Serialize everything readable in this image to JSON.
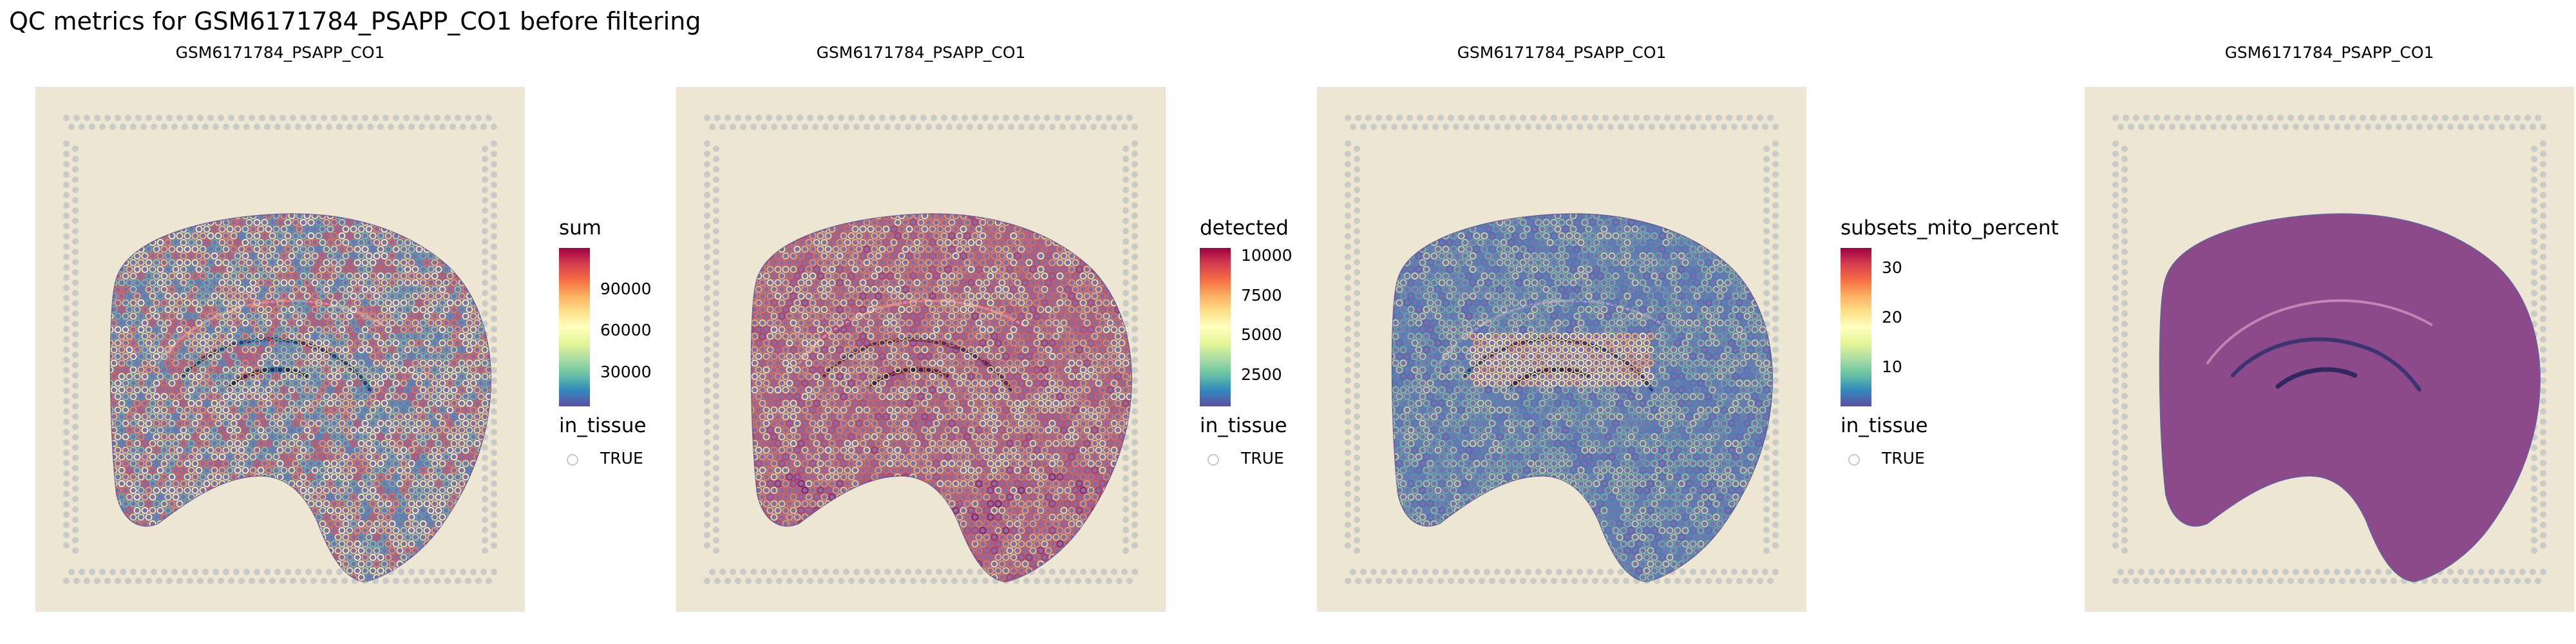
{
  "figure_title": "QC metrics for GSM6171784_PSAPP_CO1 before filtering",
  "colors": {
    "background": "#ffffff",
    "slide": "#ece6d2",
    "fiducial": "#c8ccc4",
    "tissue": "#7e6ea9",
    "tissue_he": "#8c4a8a",
    "spot_ring": "#ffffff",
    "palette_spectral": [
      "#5e4fa2",
      "#3288bd",
      "#66c2a5",
      "#abdda4",
      "#e6f598",
      "#ffffbf",
      "#fee08b",
      "#fdae61",
      "#f46d43",
      "#d53e4f",
      "#9e0142"
    ]
  },
  "chart_data": [
    {
      "type": "spatial_scatter",
      "title": "GSM6171784_PSAPP_CO1",
      "color_metric": "sum",
      "legend": {
        "title": "sum",
        "ticks": [
          {
            "label": "90000",
            "value": 90000
          },
          {
            "label": "60000",
            "value": 60000
          },
          {
            "label": "30000",
            "value": 30000
          }
        ],
        "range": [
          5000,
          120000
        ]
      },
      "shape_legend": {
        "title": "in_tissue",
        "entries": [
          "TRUE"
        ]
      },
      "spot_overlay": true,
      "pattern": "mixed"
    },
    {
      "type": "spatial_scatter",
      "title": "GSM6171784_PSAPP_CO1",
      "color_metric": "detected",
      "legend": {
        "title": "detected",
        "ticks": [
          {
            "label": "10000",
            "value": 10000
          },
          {
            "label": "7500",
            "value": 7500
          },
          {
            "label": "5000",
            "value": 5000
          },
          {
            "label": "2500",
            "value": 2500
          }
        ],
        "range": [
          500,
          10500
        ]
      },
      "shape_legend": {
        "title": "in_tissue",
        "entries": [
          "TRUE"
        ]
      },
      "spot_overlay": true,
      "pattern": "high"
    },
    {
      "type": "spatial_scatter",
      "title": "GSM6171784_PSAPP_CO1",
      "color_metric": "subsets_mito_percent",
      "legend": {
        "title": "subsets_mito_percent",
        "ticks": [
          {
            "label": "30",
            "value": 30
          },
          {
            "label": "20",
            "value": 20
          },
          {
            "label": "10",
            "value": 10
          }
        ],
        "range": [
          2,
          34
        ]
      },
      "shape_legend": {
        "title": "in_tissue",
        "entries": [
          "TRUE"
        ]
      },
      "spot_overlay": true,
      "pattern": "low"
    },
    {
      "type": "spatial_image",
      "title": "GSM6171784_PSAPP_CO1",
      "spot_overlay": false
    }
  ]
}
